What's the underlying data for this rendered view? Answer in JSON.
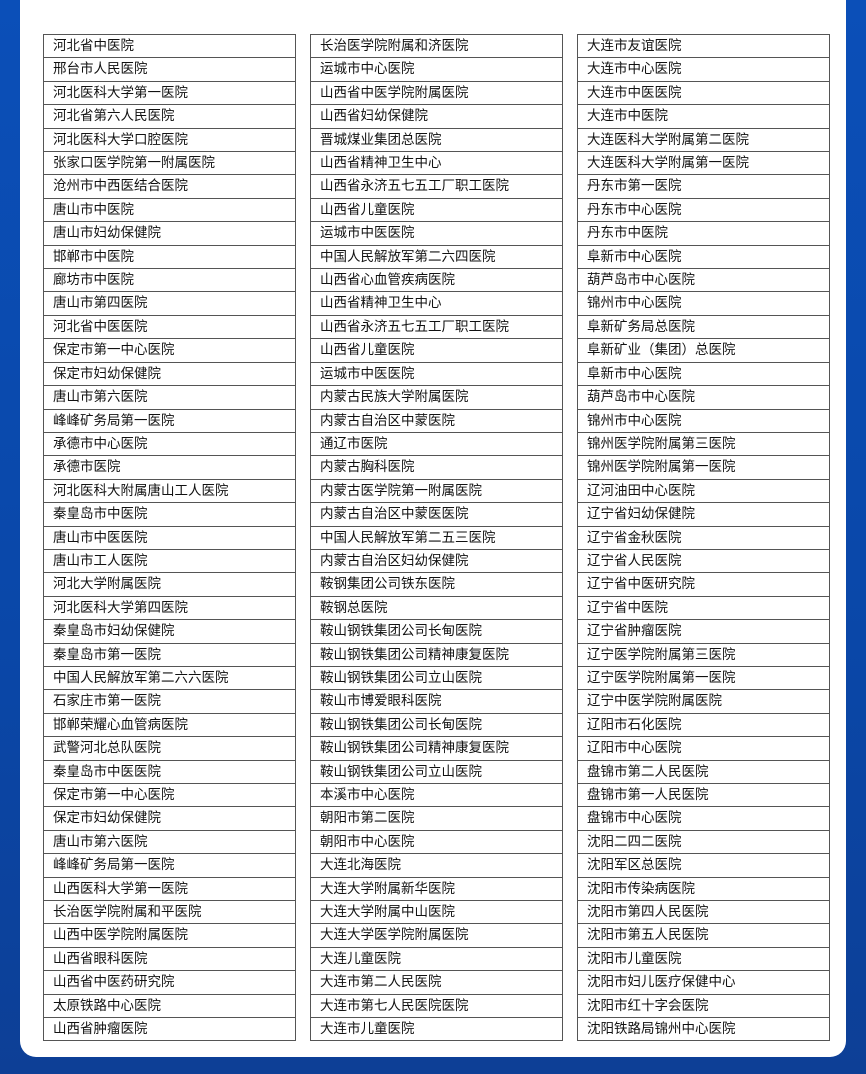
{
  "columns": [
    [
      "河北省中医院",
      "邢台市人民医院",
      "河北医科大学第一医院",
      "河北省第六人民医院",
      "河北医科大学口腔医院",
      "张家口医学院第一附属医院",
      "沧州市中西医结合医院",
      "唐山市中医院",
      "唐山市妇幼保健院",
      "邯郸市中医院",
      "廊坊市中医院",
      "唐山市第四医院",
      "河北省中医医院",
      "保定市第一中心医院",
      "保定市妇幼保健院",
      "唐山市第六医院",
      "峰峰矿务局第一医院",
      "承德市中心医院",
      "承德市医院",
      "河北医科大附属唐山工人医院",
      "秦皇岛市中医院",
      "唐山市中医医院",
      "唐山市工人医院",
      "河北大学附属医院",
      "河北医科大学第四医院",
      "秦皇岛市妇幼保健院",
      "秦皇岛市第一医院",
      "中国人民解放军第二六六医院",
      "石家庄市第一医院",
      "邯郸荣耀心血管病医院",
      "武警河北总队医院",
      "秦皇岛市中医医院",
      "保定市第一中心医院",
      "保定市妇幼保健院",
      "唐山市第六医院",
      "峰峰矿务局第一医院",
      "山西医科大学第一医院",
      "长治医学院附属和平医院",
      "山西中医学院附属医院",
      "山西省眼科医院",
      "山西省中医药研究院",
      "太原铁路中心医院",
      "山西省肿瘤医院"
    ],
    [
      "长治医学院附属和济医院",
      "运城市中心医院",
      "山西省中医学院附属医院",
      "山西省妇幼保健院",
      "晋城煤业集团总医院",
      "山西省精神卫生中心",
      "山西省永济五七五工厂职工医院",
      "山西省儿童医院",
      "运城市中医医院",
      "中国人民解放军第二六四医院",
      "山西省心血管疾病医院",
      "山西省精神卫生中心",
      "山西省永济五七五工厂职工医院",
      "山西省儿童医院",
      "运城市中医医院",
      "内蒙古民族大学附属医院",
      "内蒙古自治区中蒙医院",
      "通辽市医院",
      "内蒙古胸科医院",
      "内蒙古医学院第一附属医院",
      "内蒙古自治区中蒙医医院",
      "中国人民解放军第二五三医院",
      "内蒙古自治区妇幼保健院",
      "鞍钢集团公司铁东医院",
      "鞍钢总医院",
      "鞍山钢铁集团公司长甸医院",
      "鞍山钢铁集团公司精神康复医院",
      "鞍山钢铁集团公司立山医院",
      "鞍山市博爱眼科医院",
      "鞍山钢铁集团公司长甸医院",
      "鞍山钢铁集团公司精神康复医院",
      "鞍山钢铁集团公司立山医院",
      "本溪市中心医院",
      "朝阳市第二医院",
      "朝阳市中心医院",
      "大连北海医院",
      "大连大学附属新华医院",
      "大连大学附属中山医院",
      "大连大学医学院附属医院",
      "大连儿童医院",
      "大连市第二人民医院",
      "大连市第七人民医院医院",
      "大连市儿童医院"
    ],
    [
      "大连市友谊医院",
      "大连市中心医院",
      "大连市中医医院",
      "大连市中医院",
      "大连医科大学附属第二医院",
      "大连医科大学附属第一医院",
      "丹东市第一医院",
      "丹东市中心医院",
      "丹东市中医院",
      "阜新市中心医院",
      "葫芦岛市中心医院",
      "锦州市中心医院",
      "阜新矿务局总医院",
      "阜新矿业（集团）总医院",
      "阜新市中心医院",
      "葫芦岛市中心医院",
      "锦州市中心医院",
      "锦州医学院附属第三医院",
      "锦州医学院附属第一医院",
      "辽河油田中心医院",
      "辽宁省妇幼保健院",
      "辽宁省金秋医院",
      "辽宁省人民医院",
      "辽宁省中医研究院",
      "辽宁省中医院",
      "辽宁省肿瘤医院",
      "辽宁医学院附属第三医院",
      "辽宁医学院附属第一医院",
      "辽宁中医学院附属医院",
      "辽阳市石化医院",
      "辽阳市中心医院",
      "盘锦市第二人民医院",
      "盘锦市第一人民医院",
      "盘锦市中心医院",
      "沈阳二四二医院",
      "沈阳军区总医院",
      "沈阳市传染病医院",
      "沈阳市第四人民医院",
      "沈阳市第五人民医院",
      "沈阳市儿童医院",
      "沈阳市妇儿医疗保健中心",
      "沈阳市红十字会医院",
      "沈阳铁路局锦州中心医院"
    ]
  ]
}
